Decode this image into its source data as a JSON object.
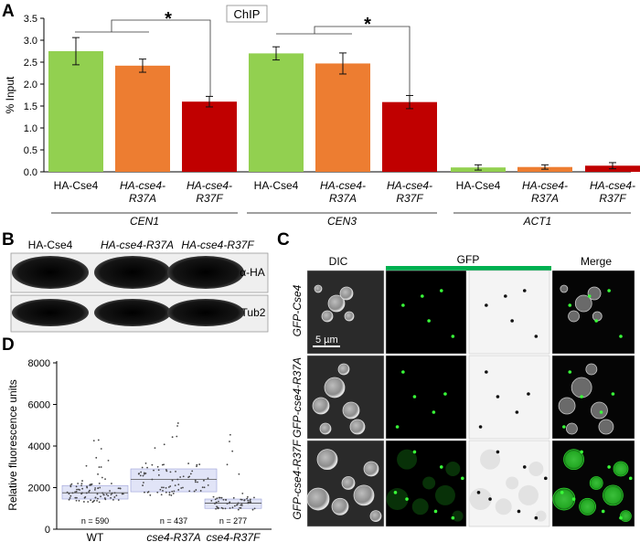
{
  "panels": {
    "a": "A",
    "b": "B",
    "c": "C",
    "d": "D"
  },
  "colors": {
    "HA-Cse4": "#92d050",
    "HA-cse4-R37A": "#ed7d31",
    "HA-cse4-R37F": "#c00000",
    "gfp_bar": "#00b050",
    "box": "#c8cdf0"
  },
  "chart_data": [
    {
      "type": "bar",
      "title": "ChIP",
      "ylabel": "% Input",
      "ylim": [
        0,
        3.5
      ],
      "yticks": [
        "0.0",
        "0.5",
        "1.0",
        "1.5",
        "2.0",
        "2.5",
        "3.0",
        "3.5"
      ],
      "categories": [
        "HA-Cse4",
        "HA-cse4-\nR37A",
        "HA-cse4-\nR37F",
        "HA-Cse4",
        "HA-cse4-\nR37A",
        "HA-cse4-\nR37F",
        "HA-Cse4",
        "HA-cse4-\nR37A",
        "HA-cse4-\nR37F"
      ],
      "groups": [
        "CEN1",
        "CEN3",
        "ACT1"
      ],
      "series": [
        {
          "values": [
            2.75,
            2.42,
            1.6,
            2.7,
            2.47,
            1.59,
            0.1,
            0.11,
            0.14
          ],
          "errors": [
            0.31,
            0.15,
            0.12,
            0.15,
            0.24,
            0.15,
            0.06,
            0.05,
            0.07
          ]
        }
      ],
      "significance": [
        "*",
        "*"
      ]
    },
    {
      "type": "scatter",
      "ylabel": "Relative fluorescence units",
      "ylim": [
        0,
        8000
      ],
      "yticks": [
        "0",
        "2000",
        "4000",
        "6000",
        "8000"
      ],
      "categories": [
        "WT",
        "cse4-R37A",
        "cse4-R37F"
      ],
      "n_labels": [
        "n = 590",
        "n = 437",
        "n = 277"
      ],
      "medians": [
        1750,
        2400,
        1250
      ],
      "q1": [
        1450,
        1800,
        1000
      ],
      "q3": [
        2100,
        2900,
        1450
      ]
    }
  ],
  "western": {
    "lanes": [
      "HA-Cse4",
      "HA-cse4-R37A",
      "HA-cse4-R37F"
    ],
    "rows": [
      "α-HA",
      "Tub2"
    ]
  },
  "microscopy": {
    "columns": [
      "DIC",
      "GFP",
      "Merge"
    ],
    "rows": [
      "GFP-Cse4",
      "GFP-cse4-R37A",
      "GFP-cse4-R37F"
    ],
    "scale_bar": "5 µm"
  }
}
